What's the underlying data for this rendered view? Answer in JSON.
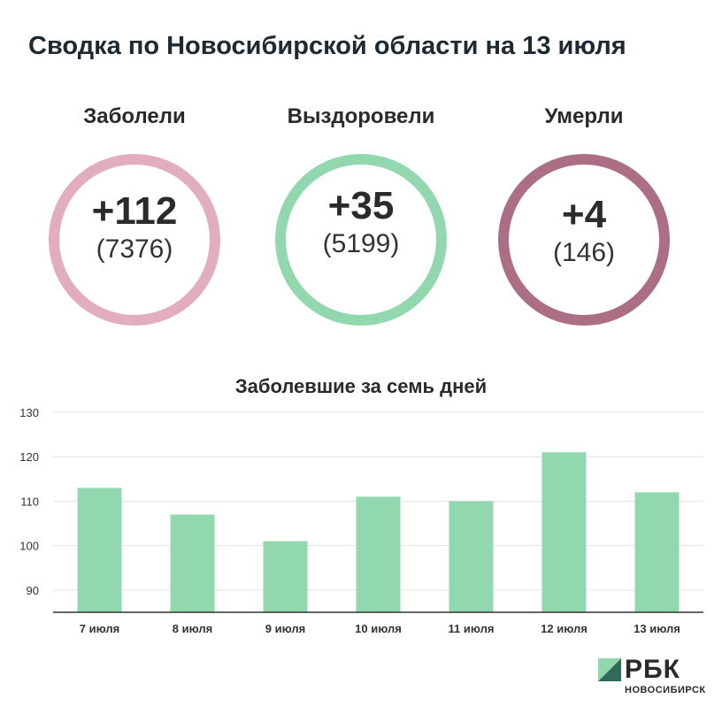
{
  "title": "Сводка по Новосибирской области на 13 июля",
  "stats": [
    {
      "label": "Заболели",
      "main": "+112",
      "total": "(7376)",
      "color": "#e2adbd"
    },
    {
      "label": "Выздоровели",
      "main": "+35",
      "total": "(5199)",
      "color": "#92d8ae"
    },
    {
      "label": "Умерли",
      "main": "+4",
      "total": "(146)",
      "color": "#ac6e85"
    }
  ],
  "chart_data": {
    "type": "bar",
    "title": "Заболевшие за семь дней",
    "categories": [
      "7 июля",
      "8 июля",
      "9 июля",
      "10 июля",
      "11 июля",
      "12 июля",
      "13 июля"
    ],
    "values": [
      113,
      107,
      101,
      111,
      110,
      121,
      112
    ],
    "ylim": [
      85,
      130
    ],
    "yticks": [
      90,
      100,
      110,
      120,
      130
    ],
    "grid": true,
    "bar_color": "#92d8ae"
  },
  "brand": {
    "name": "РБК",
    "city": "НОВОСИБИРСК"
  }
}
